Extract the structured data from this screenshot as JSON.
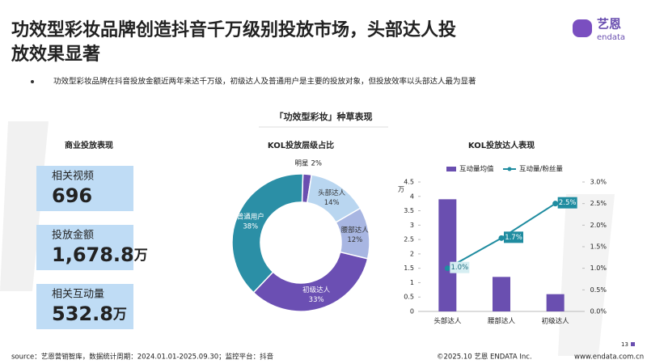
{
  "header": {
    "title_line1": "功效型彩妆品牌创造抖音千万级别投放市场，头部达人投",
    "title_line2": "放效果显著",
    "logo": "艺恩",
    "logo_sub": "endata"
  },
  "bullet": "功效型彩妆品牌在抖音投放金额近两年来达千万级，初级达人及普通用户是主要的投放对象，但投放效率以头部达人最为显著",
  "section_title": "「功效型彩妆」种草表现",
  "stats": {
    "title": "商业投放表现",
    "items": [
      {
        "label": "相关视频",
        "value": "696"
      },
      {
        "label": "投放金额",
        "value": "1,678.8",
        "unit": "万"
      },
      {
        "label": "相关互动量",
        "value": "532.8",
        "unit": "万"
      }
    ]
  },
  "chart_data": [
    {
      "type": "pie",
      "title": "KOL投放层级占比",
      "categories": [
        "明星",
        "头部达人",
        "腰部达人",
        "初级达人",
        "普通用户"
      ],
      "values": [
        2,
        14,
        12,
        33,
        38
      ],
      "value_labels": [
        "2%",
        "14%",
        "12%",
        "33%",
        "38%"
      ],
      "colors": [
        "#6a4fb0",
        "#b9d6f0",
        "#a8b6e2",
        "#6b4fb3",
        "#2b8fa6"
      ]
    },
    {
      "type": "combo",
      "title": "KOL投放达人表现",
      "categories": [
        "头部达人",
        "腰部达人",
        "初级达人"
      ],
      "y_unit": "万",
      "series": [
        {
          "name": "互动量均值",
          "color": "#6a4fb0",
          "kind": "bar",
          "values": [
            3.9,
            1.2,
            0.6
          ]
        },
        {
          "name": "互动量/粉丝量",
          "color": "#1f8ca0",
          "kind": "line",
          "axis": "y2",
          "values": [
            1.0,
            1.7,
            2.5
          ],
          "value_labels": [
            "1.0%",
            "1.7%",
            "2.5%"
          ]
        }
      ],
      "ylim": [
        0,
        4.5
      ],
      "yticks": [
        0,
        0.5,
        1,
        1.5,
        2,
        2.5,
        3,
        3.5,
        4,
        4.5
      ],
      "y2lim": [
        0,
        3.0
      ],
      "y2ticks": [
        {
          "value": 0,
          "label": "0.0%"
        },
        {
          "value": 0.5,
          "label": "0.5%"
        },
        {
          "value": 1,
          "label": "1.0%"
        },
        {
          "value": 1.5,
          "label": "1.5%"
        },
        {
          "value": 2,
          "label": "2.0%"
        },
        {
          "value": 2.5,
          "label": "2.5%"
        },
        {
          "value": 3,
          "label": "3.0%"
        }
      ]
    }
  ],
  "footer": {
    "source": "source：艺恩营销智库，数据统计周期：2024.01.01-2025.09.30；监控平台：抖音",
    "copyright": "©2025.10 艺恩 ENDATA Inc.",
    "url": "www.endata.com.cn",
    "page": "13"
  }
}
